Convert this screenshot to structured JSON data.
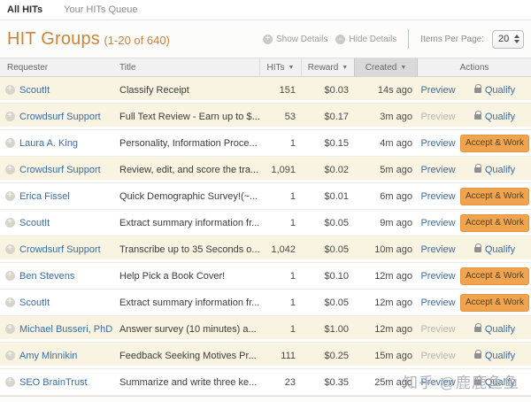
{
  "tabs": {
    "all_hits": "All HITs",
    "your_hits_queue": "Your HITs Queue"
  },
  "header": {
    "title": "HIT Groups",
    "count": "(1-20 of 640)"
  },
  "toolbar": {
    "show_details": "Show Details",
    "hide_details": "Hide Details",
    "items_per_page_label": "Items Per Page:",
    "items_per_page_value": "20"
  },
  "table": {
    "columns": {
      "requester": "Requester",
      "title": "Title",
      "hits": "HITs",
      "reward": "Reward",
      "created": "Created",
      "actions": "Actions"
    },
    "sorted_column": "created",
    "rows": [
      {
        "requester": "ScoutIt",
        "title": "Classify Receipt",
        "hits": "151",
        "reward": "$0.03",
        "created": "14s ago",
        "preview_label": "Preview",
        "preview_enabled": true,
        "action": "qualify",
        "action_label": "Qualify",
        "highlighted": true
      },
      {
        "requester": "Crowdsurf Support",
        "title": "Full Text Review - Earn up to $...",
        "hits": "53",
        "reward": "$0.17",
        "created": "3m ago",
        "preview_label": "Preview",
        "preview_enabled": false,
        "action": "qualify",
        "action_label": "Qualify",
        "highlighted": true
      },
      {
        "requester": "Laura A. King",
        "title": "Personality, Information Proce...",
        "hits": "1",
        "reward": "$0.15",
        "created": "4m ago",
        "preview_label": "Preview",
        "preview_enabled": true,
        "action": "accept",
        "action_label": "Accept & Work",
        "highlighted": false
      },
      {
        "requester": "Crowdsurf Support",
        "title": "Review, edit, and score the tra...",
        "hits": "1,091",
        "reward": "$0.02",
        "created": "5m ago",
        "preview_label": "Preview",
        "preview_enabled": true,
        "action": "qualify",
        "action_label": "Qualify",
        "highlighted": true
      },
      {
        "requester": "Erica Fissel",
        "title": "Quick Demographic Survey!(~...",
        "hits": "1",
        "reward": "$0.01",
        "created": "6m ago",
        "preview_label": "Preview",
        "preview_enabled": true,
        "action": "accept",
        "action_label": "Accept & Work",
        "highlighted": false
      },
      {
        "requester": "ScoutIt",
        "title": "Extract summary information fr...",
        "hits": "1",
        "reward": "$0.05",
        "created": "9m ago",
        "preview_label": "Preview",
        "preview_enabled": true,
        "action": "accept",
        "action_label": "Accept & Work",
        "highlighted": false
      },
      {
        "requester": "Crowdsurf Support",
        "title": "Transcribe up to 35 Seconds o...",
        "hits": "1,042",
        "reward": "$0.05",
        "created": "10m ago",
        "preview_label": "Preview",
        "preview_enabled": true,
        "action": "qualify",
        "action_label": "Qualify",
        "highlighted": true
      },
      {
        "requester": "Ben Stevens",
        "title": "Help Pick a Book Cover!",
        "hits": "1",
        "reward": "$0.10",
        "created": "12m ago",
        "preview_label": "Preview",
        "preview_enabled": true,
        "action": "accept",
        "action_label": "Accept & Work",
        "highlighted": false
      },
      {
        "requester": "ScoutIt",
        "title": "Extract summary information fr...",
        "hits": "1",
        "reward": "$0.05",
        "created": "12m ago",
        "preview_label": "Preview",
        "preview_enabled": true,
        "action": "accept",
        "action_label": "Accept & Work",
        "highlighted": false
      },
      {
        "requester": "Michael Busseri, PhD",
        "title": "Answer survey (10 minutes) a...",
        "hits": "1",
        "reward": "$1.00",
        "created": "12m ago",
        "preview_label": "Preview",
        "preview_enabled": false,
        "action": "qualify",
        "action_label": "Qualify",
        "highlighted": true
      },
      {
        "requester": "Amy Minnikin",
        "title": "Feedback Seeking Motives Pr...",
        "hits": "111",
        "reward": "$0.25",
        "created": "15m ago",
        "preview_label": "Preview",
        "preview_enabled": false,
        "action": "qualify",
        "action_label": "Qualify",
        "highlighted": true
      },
      {
        "requester": "SEO BrainTrust",
        "title": "Summarize and write three ke...",
        "hits": "23",
        "reward": "$0.35",
        "created": "25m ago",
        "preview_label": "Preview",
        "preview_enabled": true,
        "action": "qualify",
        "action_label": "Qualify",
        "highlighted": false
      }
    ]
  },
  "watermark": "知乎 @鹿鹿鱼鱼",
  "colors": {
    "accent_orange": "#c9853c",
    "button_orange": "#f1a44f",
    "link_blue": "#3a6da4",
    "row_highlight": "#f9f3e1",
    "sorted_header_bg": "#d9d9d9"
  }
}
